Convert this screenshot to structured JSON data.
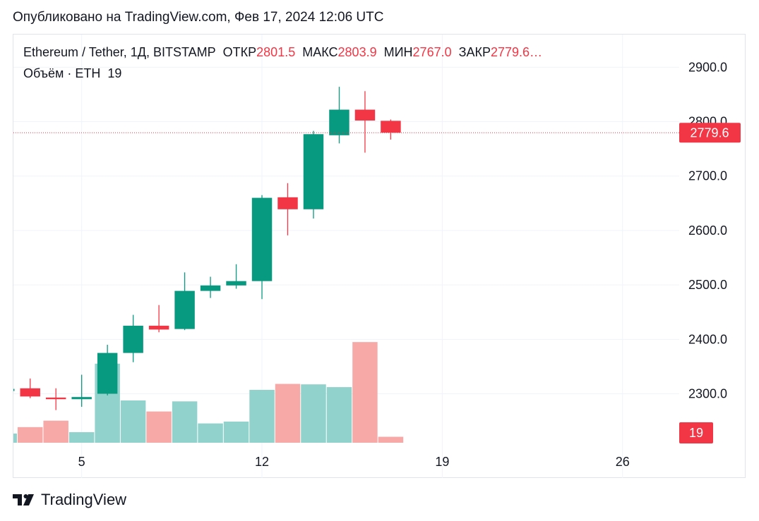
{
  "header": {
    "published": "Опубликовано на TradingView.com, Фев 17, 2024 12:06 UTC"
  },
  "legend": {
    "symbol": "Ethereum / Tether, 1Д, BITSTAMP",
    "open_label": "ОТКР",
    "open_value": "2801.5",
    "high_label": "МАКС",
    "high_value": "2803.9",
    "low_label": "МИН",
    "low_value": "2767.0",
    "close_label": "ЗАКР",
    "close_value": "2779.6…",
    "volume_label": "Объём · ETH",
    "volume_value": "19"
  },
  "footer": {
    "brand": "TradingView"
  },
  "colors": {
    "up": "#089981",
    "down": "#f23645",
    "vol_up": "#92d2cc",
    "vol_down": "#f7a9a7",
    "grid": "#f0f3fa",
    "axis_text": "#131722"
  },
  "chart_data": {
    "type": "candlestick",
    "y_axis": {
      "ticks": [
        2300.0,
        2400.0,
        2500.0,
        2600.0,
        2700.0,
        2800.0,
        2900.0
      ],
      "tick_labels": [
        "2300.0",
        "2400.0",
        "2500.0",
        "2600.0",
        "2700.0",
        "2800.0",
        "2900.0"
      ],
      "range": [
        2210,
        2960
      ]
    },
    "x_axis": {
      "tick_labels": [
        "5",
        "12",
        "19",
        "26"
      ],
      "tick_days": [
        5,
        12,
        19,
        26
      ],
      "range": [
        2.35,
        28.2
      ]
    },
    "last_price": {
      "value": 2779.6,
      "label": "2779.6"
    },
    "volume_badge": "19",
    "candles": [
      {
        "day": 2,
        "open": 2305,
        "high": 2312,
        "low": 2298,
        "close": 2309
      },
      {
        "day": 3,
        "open": 2310,
        "high": 2328,
        "low": 2292,
        "close": 2295
      },
      {
        "day": 4,
        "open": 2293,
        "high": 2310,
        "low": 2270,
        "close": 2290
      },
      {
        "day": 5,
        "open": 2290,
        "high": 2335,
        "low": 2276,
        "close": 2294
      },
      {
        "day": 6,
        "open": 2300,
        "high": 2390,
        "low": 2297,
        "close": 2375
      },
      {
        "day": 7,
        "open": 2375,
        "high": 2445,
        "low": 2358,
        "close": 2425
      },
      {
        "day": 8,
        "open": 2425,
        "high": 2463,
        "low": 2413,
        "close": 2418
      },
      {
        "day": 9,
        "open": 2419,
        "high": 2523,
        "low": 2417,
        "close": 2489
      },
      {
        "day": 10,
        "open": 2489,
        "high": 2515,
        "low": 2476,
        "close": 2499
      },
      {
        "day": 11,
        "open": 2499,
        "high": 2538,
        "low": 2493,
        "close": 2507
      },
      {
        "day": 12,
        "open": 2507,
        "high": 2665,
        "low": 2474,
        "close": 2660
      },
      {
        "day": 13,
        "open": 2661,
        "high": 2687,
        "low": 2591,
        "close": 2639
      },
      {
        "day": 14,
        "open": 2639,
        "high": 2783,
        "low": 2622,
        "close": 2777
      },
      {
        "day": 15,
        "open": 2775,
        "high": 2864,
        "low": 2760,
        "close": 2822
      },
      {
        "day": 16,
        "open": 2822,
        "high": 2856,
        "low": 2743,
        "close": 2802
      },
      {
        "day": 17,
        "open": 2801.5,
        "high": 2803.9,
        "low": 2767.0,
        "close": 2779.6
      }
    ],
    "volume": [
      {
        "day": 2,
        "value": 200,
        "dir": "up"
      },
      {
        "day": 3,
        "value": 340,
        "dir": "down"
      },
      {
        "day": 4,
        "value": 480,
        "dir": "down"
      },
      {
        "day": 5,
        "value": 230,
        "dir": "up"
      },
      {
        "day": 6,
        "value": 1720,
        "dir": "up"
      },
      {
        "day": 7,
        "value": 920,
        "dir": "up"
      },
      {
        "day": 8,
        "value": 680,
        "dir": "down"
      },
      {
        "day": 9,
        "value": 900,
        "dir": "up"
      },
      {
        "day": 10,
        "value": 420,
        "dir": "up"
      },
      {
        "day": 11,
        "value": 460,
        "dir": "up"
      },
      {
        "day": 12,
        "value": 1150,
        "dir": "up"
      },
      {
        "day": 13,
        "value": 1280,
        "dir": "down"
      },
      {
        "day": 14,
        "value": 1270,
        "dir": "up"
      },
      {
        "day": 15,
        "value": 1210,
        "dir": "up"
      },
      {
        "day": 16,
        "value": 2190,
        "dir": "down"
      },
      {
        "day": 17,
        "value": 130,
        "dir": "down"
      }
    ],
    "volume_max": 2300
  }
}
